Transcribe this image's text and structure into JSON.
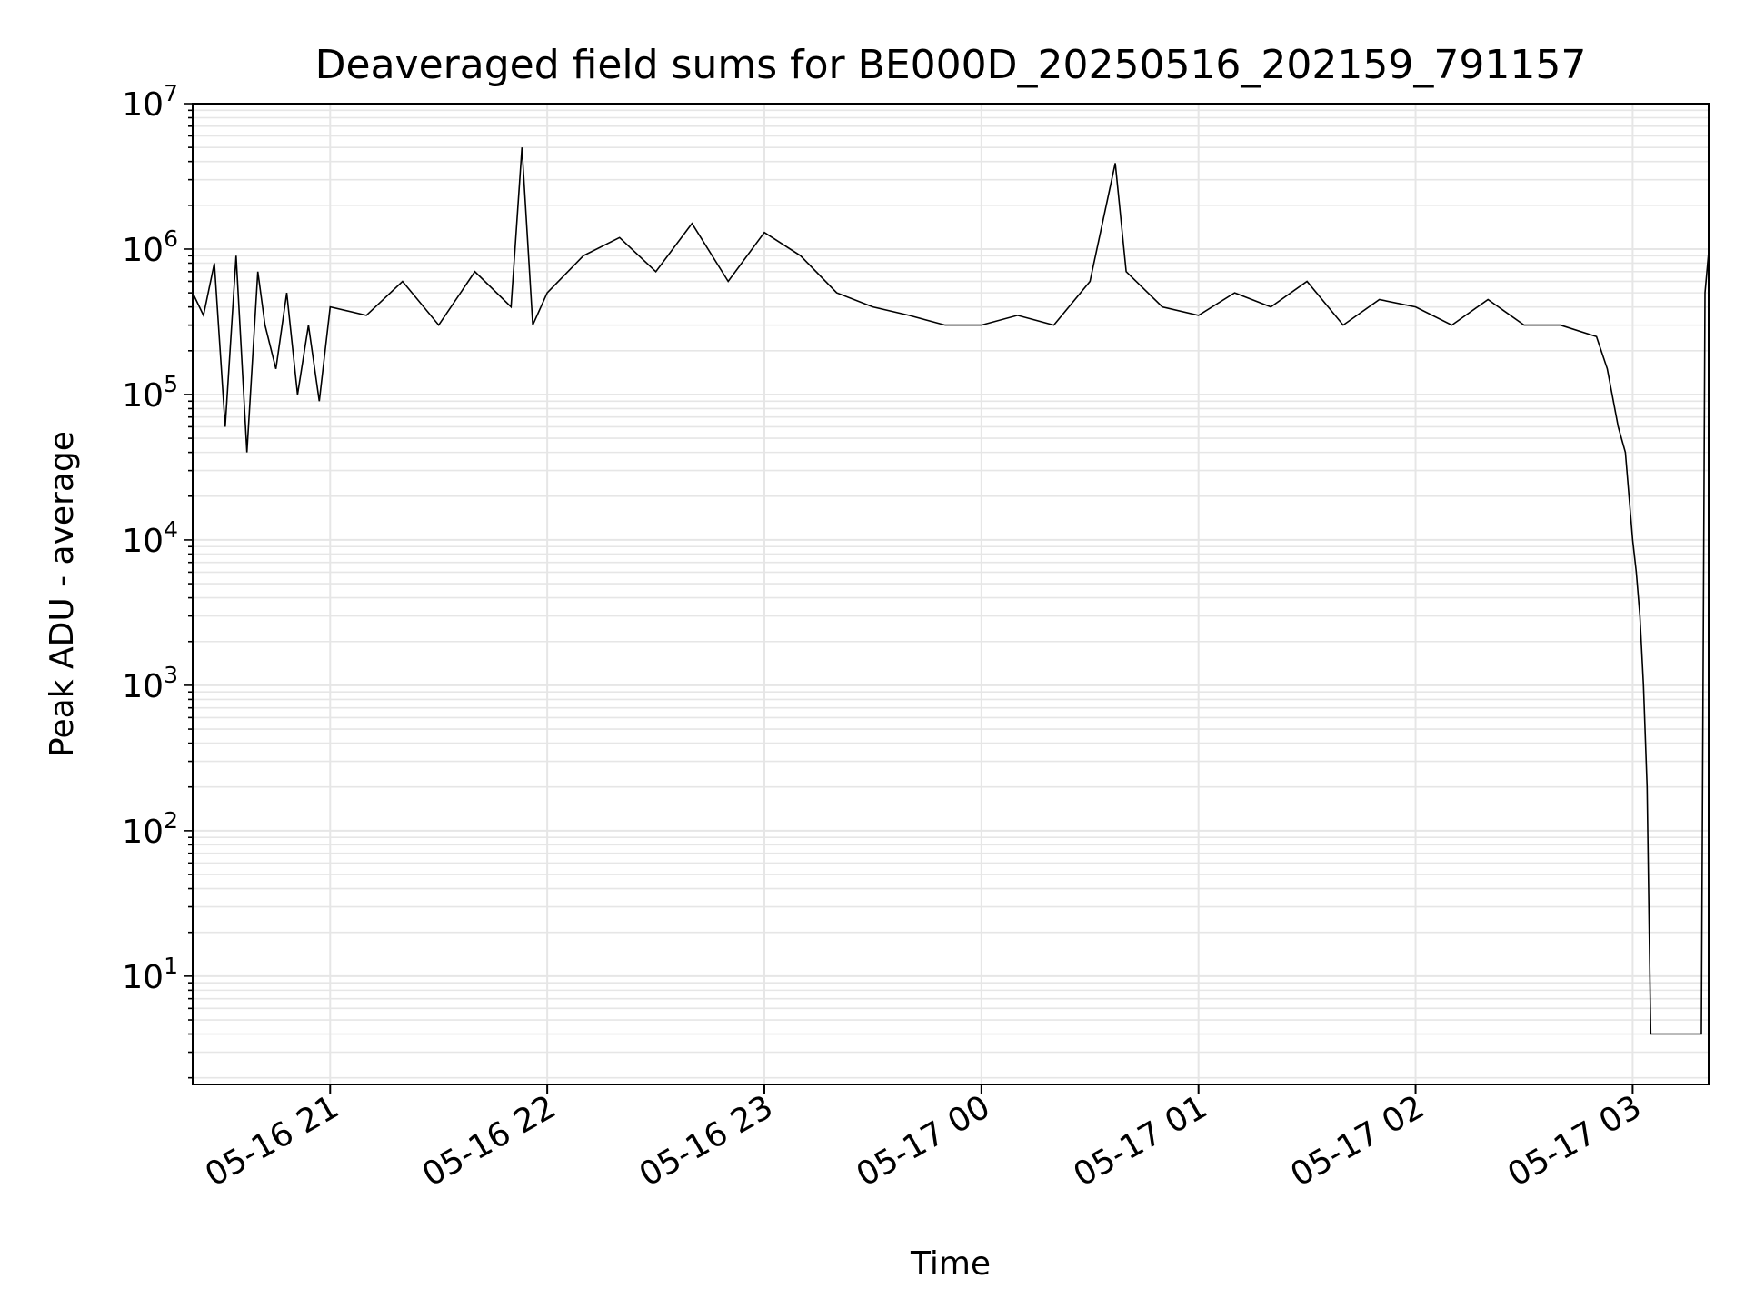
{
  "chart_data": {
    "type": "line",
    "title": "Deaveraged field sums for BE000D_20250516_202159_791157",
    "xlabel": "Time",
    "ylabel": "Peak ADU - average",
    "yscale": "log",
    "ylim": [
      1.8,
      10000000
    ],
    "xlim": [
      "05-16 20:22",
      "05-17 03:21"
    ],
    "grid": true,
    "line_color": "#000000",
    "grid_color": "#e6e6e6",
    "x_ticks": [
      "05-16 21",
      "05-16 22",
      "05-16 23",
      "05-17 00",
      "05-17 01",
      "05-17 02",
      "05-17 03"
    ],
    "y_ticks": [
      {
        "base": "10",
        "exp": "1"
      },
      {
        "base": "10",
        "exp": "2"
      },
      {
        "base": "10",
        "exp": "3"
      },
      {
        "base": "10",
        "exp": "4"
      },
      {
        "base": "10",
        "exp": "5"
      },
      {
        "base": "10",
        "exp": "6"
      },
      {
        "base": "10",
        "exp": "7"
      }
    ],
    "series": [
      {
        "x": [
          "05-16 20:22",
          "05-16 20:25",
          "05-16 20:28",
          "05-16 20:31",
          "05-16 20:34",
          "05-16 20:37",
          "05-16 20:40",
          "05-16 20:42",
          "05-16 20:45",
          "05-16 20:48",
          "05-16 20:51",
          "05-16 20:54",
          "05-16 20:57",
          "05-16 21:00",
          "05-16 21:10",
          "05-16 21:20",
          "05-16 21:30",
          "05-16 21:40",
          "05-16 21:50",
          "05-16 21:53",
          "05-16 21:56",
          "05-16 22:00",
          "05-16 22:10",
          "05-16 22:20",
          "05-16 22:30",
          "05-16 22:40",
          "05-16 22:50",
          "05-16 23:00",
          "05-16 23:10",
          "05-16 23:20",
          "05-16 23:30",
          "05-16 23:40",
          "05-16 23:50",
          "05-17 00:00",
          "05-17 00:10",
          "05-17 00:20",
          "05-17 00:30",
          "05-17 00:37",
          "05-17 00:40",
          "05-17 00:50",
          "05-17 01:00",
          "05-17 01:10",
          "05-17 01:20",
          "05-17 01:30",
          "05-17 01:40",
          "05-17 01:50",
          "05-17 02:00",
          "05-17 02:10",
          "05-17 02:20",
          "05-17 02:30",
          "05-17 02:40",
          "05-17 02:50",
          "05-17 02:53",
          "05-17 02:56",
          "05-17 02:58",
          "05-17 03:00",
          "05-17 03:01",
          "05-17 03:02",
          "05-17 03:03",
          "05-17 03:04",
          "05-17 03:05",
          "05-17 03:06",
          "05-17 03:10",
          "05-17 03:15",
          "05-17 03:18",
          "05-17 03:19",
          "05-17 03:20",
          "05-17 03:21"
        ],
        "values": [
          500000,
          350000,
          800000,
          60000,
          900000,
          40000,
          700000,
          300000,
          150000,
          500000,
          100000,
          300000,
          90000,
          400000,
          350000,
          600000,
          300000,
          700000,
          400000,
          5000000,
          300000,
          500000,
          900000,
          1200000,
          700000,
          1500000,
          600000,
          1300000,
          900000,
          500000,
          400000,
          350000,
          300000,
          300000,
          350000,
          300000,
          600000,
          3900000,
          700000,
          400000,
          350000,
          500000,
          400000,
          600000,
          300000,
          450000,
          400000,
          300000,
          450000,
          300000,
          300000,
          250000,
          150000,
          60000,
          40000,
          10000,
          6000,
          3000,
          1000,
          200,
          4,
          4,
          4,
          4,
          4,
          4,
          500000,
          950000
        ]
      }
    ]
  }
}
